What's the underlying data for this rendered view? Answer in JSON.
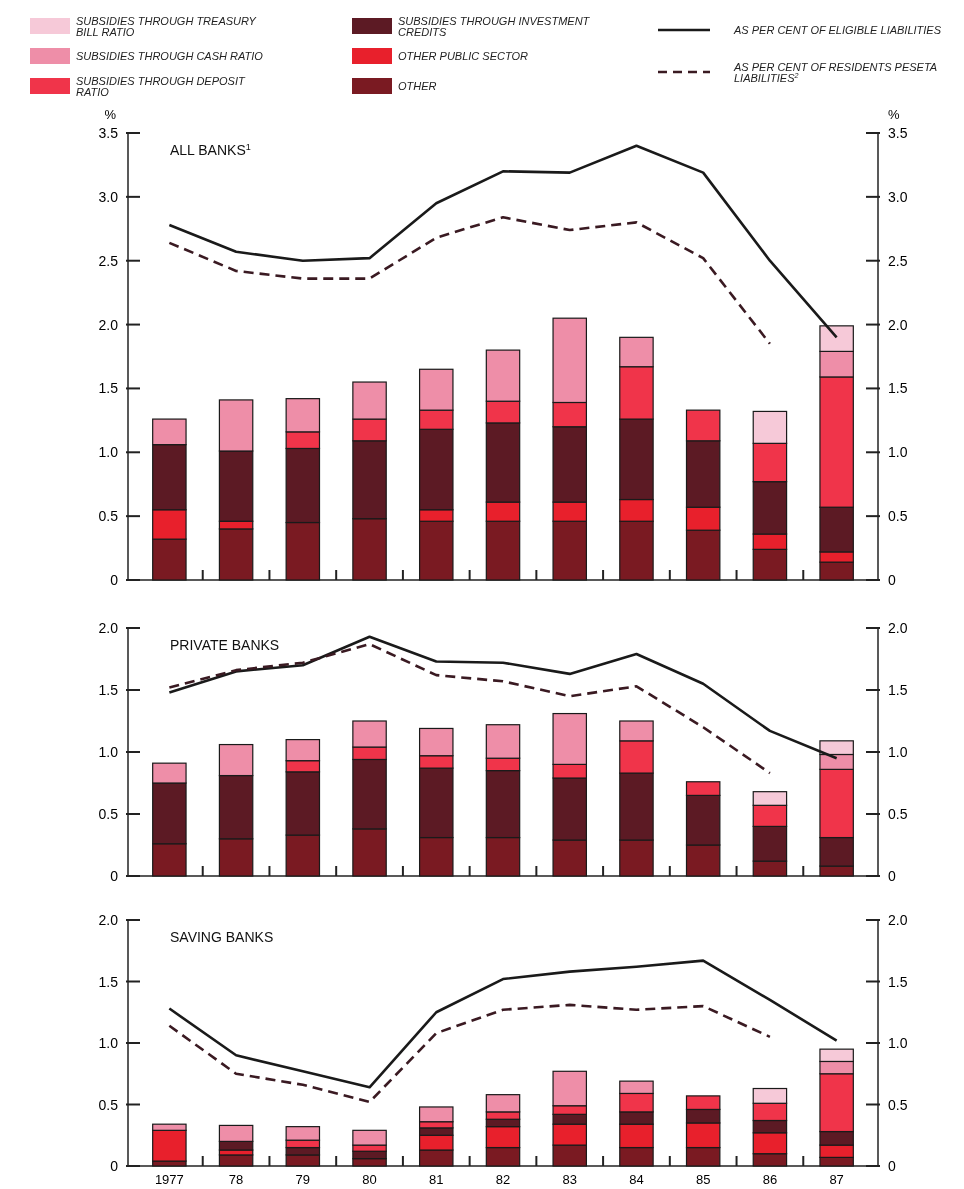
{
  "chart_data": [
    {
      "type": "bar",
      "title": "ALL BANKS$^{1}$",
      "ylabel": "%",
      "y2label": "%",
      "stacked": true,
      "legend": "top",
      "tick_labels": "y",
      "categories": [
        null,
        null,
        null,
        null,
        null,
        null,
        null,
        null,
        null,
        null,
        null
      ],
      "ylim": [
        0,
        3.5
      ],
      "yticks": [
        0,
        0.5,
        {
          "value": 1,
          "label": "1.0"
        },
        1.5,
        {
          "value": 2,
          "label": "2.0"
        },
        2.5,
        {
          "value": 3,
          "label": "3.0"
        },
        3.5
      ],
      "y2lim": [
        0,
        3.5
      ],
      "y2ticks": [
        0,
        0.5,
        {
          "value": 1,
          "label": "1.0"
        },
        1.5,
        {
          "value": 2,
          "label": "2.0"
        },
        2.5,
        {
          "value": 3,
          "label": "3.0"
        },
        3.5
      ],
      "series": [
        {
          "name": "OTHER",
          "color": "#7a1a22",
          "values": [
            0.32,
            0.4,
            0.45,
            0.48,
            0.46,
            0.46,
            0.46,
            0.46,
            0.39,
            0.24,
            0.14
          ]
        },
        {
          "name": "OTHER PUBLIC SECTOR",
          "color": "#e8202c",
          "values": [
            0.23,
            0.06,
            0,
            0,
            0.09,
            0.15,
            0.15,
            0.17,
            0.18,
            0.12,
            0.08
          ]
        },
        {
          "name": "SUBSIDIES THROUGH INVESTMENT CREDITS",
          "color": "#5c1a24",
          "values": [
            0.51,
            0.55,
            0.58,
            0.61,
            0.63,
            0.62,
            0.59,
            0.63,
            0.52,
            0.41,
            0.35
          ]
        },
        {
          "name": "SUBSIDIES THROUGH DEPOSIT RATIO",
          "color": "#f0344a",
          "values": [
            0,
            0,
            0.13,
            0.17,
            0.15,
            0.17,
            0.19,
            0.41,
            0.24,
            0.3,
            1.02
          ]
        },
        {
          "name": "SUBSIDIES THROUGH CASH RATIO",
          "color": "#ee8ea8",
          "values": [
            0.2,
            0.4,
            0.26,
            0.29,
            0.32,
            0.4,
            0.66,
            0.23,
            0,
            0,
            0.2
          ]
        },
        {
          "name": "SUBSIDIES THROUGH TREASURY BILL RATIO",
          "color": "#f6c9d8",
          "values": [
            0,
            0,
            0,
            0,
            0,
            0,
            0,
            0,
            0,
            0.25,
            0.2
          ]
        },
        {
          "type": "line",
          "name": "AS PER CENT OF ELIGIBLE LIABILITIES",
          "color": "#1a1a1a",
          "line_style": "solid",
          "values": [
            2.78,
            2.57,
            2.5,
            2.52,
            2.95,
            3.2,
            3.19,
            3.4,
            3.19,
            2.5,
            1.9
          ]
        },
        {
          "type": "line",
          "name": "AS PER CENT OF RESIDENTS PESETA LIABILITIES$^{2}$",
          "color": "#3a1a22",
          "line_style": "dashed",
          "values": [
            2.64,
            2.42,
            2.36,
            2.36,
            2.68,
            2.84,
            2.74,
            2.8,
            2.52,
            1.85,
            null
          ]
        }
      ]
    },
    {
      "type": "bar",
      "title": "PRIVATE BANKS",
      "stacked": true,
      "tick_labels": "y",
      "categories": [
        null,
        null,
        null,
        null,
        null,
        null,
        null,
        null,
        null,
        null,
        null
      ],
      "ylim": [
        0,
        2
      ],
      "yticks": [
        0,
        0.5,
        {
          "value": 1,
          "label": "1.0"
        },
        1.5,
        {
          "value": 2,
          "label": "2.0"
        }
      ],
      "y2lim": [
        0,
        2
      ],
      "y2ticks": [
        0,
        0.5,
        {
          "value": 1,
          "label": "1.0"
        },
        1.5,
        {
          "value": 2,
          "label": "2.0"
        }
      ],
      "series": [
        {
          "color": "#7a1a22",
          "values": [
            0.26,
            0.3,
            0.33,
            0.38,
            0.31,
            0.31,
            0.29,
            0.29,
            0.25,
            0.12,
            0.08
          ]
        },
        {
          "color": "#5c1a24",
          "values": [
            0.49,
            0.51,
            0.51,
            0.56,
            0.56,
            0.54,
            0.5,
            0.54,
            0.4,
            0.28,
            0.23
          ]
        },
        {
          "color": "#f0344a",
          "values": [
            0,
            0,
            0.09,
            0.1,
            0.1,
            0.1,
            0.11,
            0.26,
            0.11,
            0.17,
            0.55
          ]
        },
        {
          "color": "#ee8ea8",
          "values": [
            0.16,
            0.25,
            0.17,
            0.21,
            0.22,
            0.27,
            0.41,
            0.16,
            0,
            0,
            0.12
          ]
        },
        {
          "color": "#f6c9d8",
          "values": [
            0,
            0,
            0,
            0,
            0,
            0,
            0,
            0,
            0,
            0.11,
            0.11
          ]
        },
        {
          "type": "line",
          "color": "#1a1a1a",
          "line_style": "solid",
          "values": [
            1.48,
            1.65,
            1.7,
            1.93,
            1.73,
            1.72,
            1.63,
            1.79,
            1.55,
            1.17,
            0.95
          ]
        },
        {
          "type": "line",
          "color": "#3a1a22",
          "line_style": "dashed",
          "values": [
            1.52,
            1.66,
            1.72,
            1.87,
            1.62,
            1.57,
            1.45,
            1.53,
            1.2,
            0.83,
            null
          ]
        }
      ]
    },
    {
      "type": "bar",
      "title": "SAVING BANKS",
      "stacked": true,
      "categories": [
        "1977",
        "78",
        "79",
        "80",
        "81",
        "82",
        "83",
        "84",
        "85",
        "86",
        "87"
      ],
      "ylim": [
        0,
        2
      ],
      "yticks": [
        0,
        0.5,
        {
          "value": 1,
          "label": "1.0"
        },
        1.5,
        {
          "value": 2,
          "label": "2.0"
        }
      ],
      "y2lim": [
        0,
        2
      ],
      "y2ticks": [
        0,
        0.5,
        {
          "value": 1,
          "label": "1.0"
        },
        1.5,
        {
          "value": 2,
          "label": "2.0"
        }
      ],
      "series": [
        {
          "color": "#7a1a22",
          "values": [
            0.04,
            0.09,
            0.09,
            0.06,
            0.13,
            0.15,
            0.17,
            0.15,
            0.15,
            0.1,
            0.07
          ]
        },
        {
          "color": "#e8202c",
          "values": [
            0.25,
            0.04,
            0,
            0,
            0.12,
            0.17,
            0.17,
            0.19,
            0.2,
            0.17,
            0.1
          ]
        },
        {
          "color": "#5c1a24",
          "values": [
            0,
            0.07,
            0.06,
            0.06,
            0.06,
            0.06,
            0.08,
            0.1,
            0.11,
            0.1,
            0.11
          ]
        },
        {
          "color": "#f0344a",
          "values": [
            0,
            0,
            0.06,
            0.05,
            0.05,
            0.06,
            0.07,
            0.15,
            0.11,
            0.14,
            0.47
          ]
        },
        {
          "color": "#ee8ea8",
          "values": [
            0.05,
            0.13,
            0.11,
            0.12,
            0.12,
            0.14,
            0.28,
            0.1,
            0,
            0,
            0.1
          ]
        },
        {
          "color": "#f6c9d8",
          "values": [
            0,
            0,
            0,
            0,
            0,
            0,
            0,
            0,
            0,
            0.12,
            0.1
          ]
        },
        {
          "type": "line",
          "color": "#1a1a1a",
          "line_style": "solid",
          "values": [
            1.28,
            0.9,
            0.77,
            0.64,
            1.25,
            1.52,
            1.58,
            1.62,
            1.67,
            1.35,
            1.02
          ]
        },
        {
          "type": "line",
          "color": "#3a1a22",
          "line_style": "dashed",
          "values": [
            1.14,
            0.75,
            0.66,
            0.52,
            1.08,
            1.27,
            1.31,
            1.27,
            1.3,
            1.05,
            null
          ]
        }
      ]
    }
  ]
}
